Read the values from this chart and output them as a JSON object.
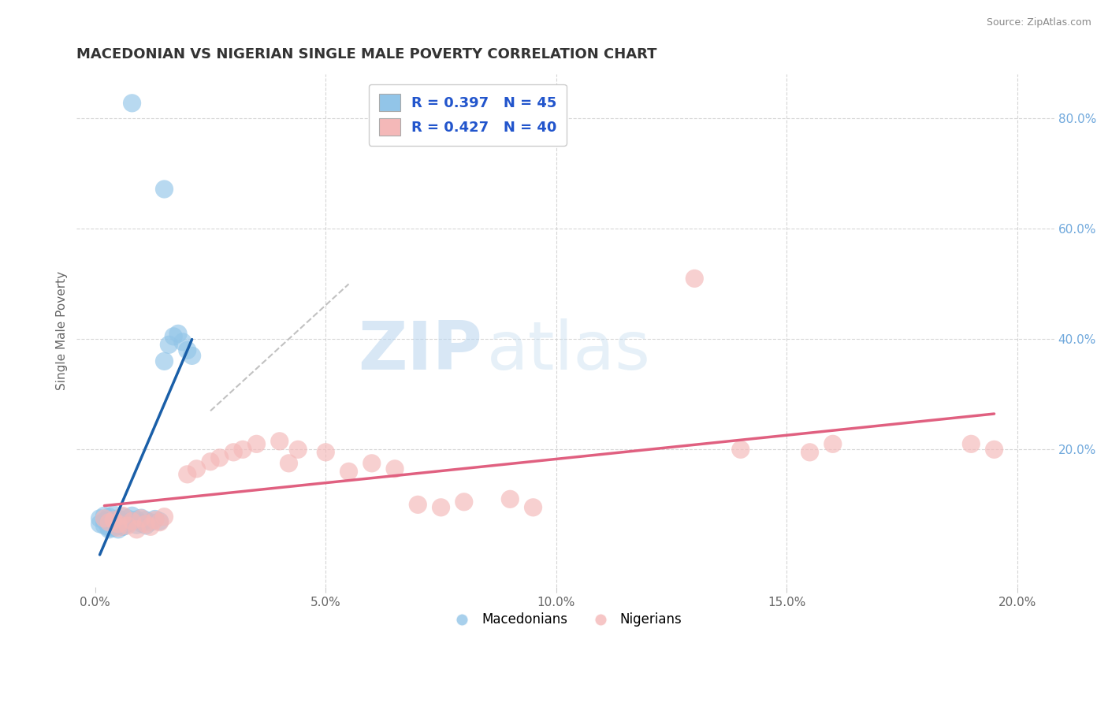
{
  "title": "MACEDONIAN VS NIGERIAN SINGLE MALE POVERTY CORRELATION CHART",
  "source": "Source: ZipAtlas.com",
  "ylabel": "Single Male Poverty",
  "x_tick_labels": [
    "0.0%",
    "5.0%",
    "10.0%",
    "15.0%",
    "20.0%"
  ],
  "x_tick_vals": [
    0.0,
    0.05,
    0.1,
    0.15,
    0.2
  ],
  "y_tick_labels": [
    "20.0%",
    "40.0%",
    "60.0%",
    "80.0%"
  ],
  "y_tick_vals": [
    0.2,
    0.4,
    0.6,
    0.8
  ],
  "xlim": [
    -0.004,
    0.208
  ],
  "ylim": [
    -0.05,
    0.88
  ],
  "macedonian_color": "#92c5e8",
  "nigerian_color": "#f4b8b8",
  "macedonian_line_color": "#1a5fa8",
  "nigerian_line_color": "#e06080",
  "R_mac": 0.397,
  "N_mac": 45,
  "R_nig": 0.427,
  "N_nig": 40,
  "macedonian_dots": [
    [
      0.001,
      0.075
    ],
    [
      0.001,
      0.065
    ],
    [
      0.002,
      0.08
    ],
    [
      0.002,
      0.07
    ],
    [
      0.002,
      0.062
    ],
    [
      0.003,
      0.078
    ],
    [
      0.003,
      0.068
    ],
    [
      0.003,
      0.06
    ],
    [
      0.003,
      0.055
    ],
    [
      0.004,
      0.082
    ],
    [
      0.004,
      0.072
    ],
    [
      0.004,
      0.065
    ],
    [
      0.004,
      0.058
    ],
    [
      0.005,
      0.075
    ],
    [
      0.005,
      0.07
    ],
    [
      0.005,
      0.062
    ],
    [
      0.006,
      0.078
    ],
    [
      0.006,
      0.068
    ],
    [
      0.006,
      0.06
    ],
    [
      0.007,
      0.075
    ],
    [
      0.007,
      0.065
    ],
    [
      0.008,
      0.08
    ],
    [
      0.008,
      0.07
    ],
    [
      0.009,
      0.073
    ],
    [
      0.009,
      0.063
    ],
    [
      0.01,
      0.076
    ],
    [
      0.01,
      0.066
    ],
    [
      0.011,
      0.072
    ],
    [
      0.011,
      0.062
    ],
    [
      0.012,
      0.068
    ],
    [
      0.013,
      0.074
    ],
    [
      0.014,
      0.07
    ],
    [
      0.015,
      0.36
    ],
    [
      0.016,
      0.39
    ],
    [
      0.017,
      0.405
    ],
    [
      0.018,
      0.41
    ],
    [
      0.019,
      0.395
    ],
    [
      0.02,
      0.38
    ],
    [
      0.021,
      0.37
    ],
    [
      0.008,
      0.828
    ],
    [
      0.015,
      0.672
    ],
    [
      0.003,
      0.058
    ],
    [
      0.004,
      0.062
    ],
    [
      0.005,
      0.055
    ],
    [
      0.006,
      0.06
    ]
  ],
  "nigerian_dots": [
    [
      0.002,
      0.075
    ],
    [
      0.003,
      0.068
    ],
    [
      0.004,
      0.072
    ],
    [
      0.005,
      0.065
    ],
    [
      0.005,
      0.058
    ],
    [
      0.006,
      0.08
    ],
    [
      0.007,
      0.062
    ],
    [
      0.008,
      0.07
    ],
    [
      0.009,
      0.055
    ],
    [
      0.01,
      0.075
    ],
    [
      0.011,
      0.065
    ],
    [
      0.012,
      0.06
    ],
    [
      0.013,
      0.072
    ],
    [
      0.014,
      0.068
    ],
    [
      0.015,
      0.078
    ],
    [
      0.02,
      0.155
    ],
    [
      0.022,
      0.165
    ],
    [
      0.025,
      0.178
    ],
    [
      0.027,
      0.185
    ],
    [
      0.03,
      0.195
    ],
    [
      0.032,
      0.2
    ],
    [
      0.035,
      0.21
    ],
    [
      0.04,
      0.215
    ],
    [
      0.042,
      0.175
    ],
    [
      0.044,
      0.2
    ],
    [
      0.05,
      0.195
    ],
    [
      0.055,
      0.16
    ],
    [
      0.06,
      0.175
    ],
    [
      0.065,
      0.165
    ],
    [
      0.07,
      0.1
    ],
    [
      0.075,
      0.095
    ],
    [
      0.08,
      0.105
    ],
    [
      0.09,
      0.11
    ],
    [
      0.095,
      0.095
    ],
    [
      0.13,
      0.51
    ],
    [
      0.14,
      0.2
    ],
    [
      0.155,
      0.195
    ],
    [
      0.16,
      0.21
    ],
    [
      0.19,
      0.21
    ],
    [
      0.195,
      0.2
    ]
  ],
  "background_color": "#ffffff",
  "grid_color": "#cccccc",
  "title_color": "#333333",
  "right_tick_color": "#6fa8dc",
  "legend_text_color": "#2255cc"
}
